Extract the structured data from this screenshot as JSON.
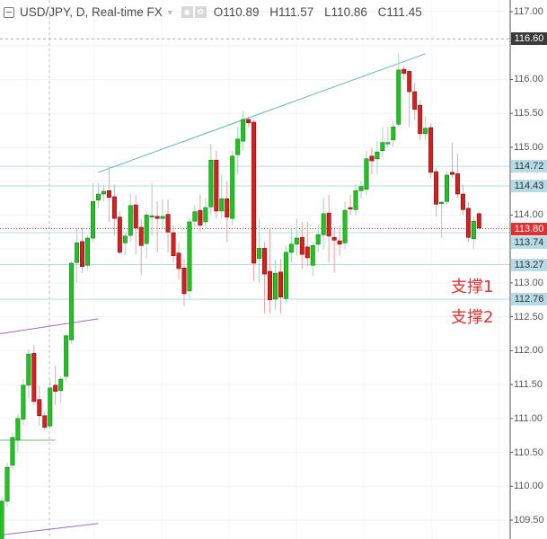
{
  "legend": {
    "title": "USD/JPY, D, Real-time FX",
    "icons": [
      "collapse-icon",
      "caret-down-icon",
      "eye-icon",
      "gear-icon"
    ],
    "open": "O110.89",
    "high": "H111.57",
    "low": "L110.86",
    "close": "C111.45"
  },
  "annotations": {
    "support1": "支撑1",
    "support2": "支撑2"
  },
  "colors": {
    "up": "#1fc51f",
    "down": "#d81e1e",
    "trendline": "#5fb9a8",
    "hline": "#b5dbe6",
    "price_line": "#e23030",
    "purple": "#9b6bc4",
    "label": "#e23030"
  },
  "chart_data": {
    "type": "candlestick",
    "symbol": "USD/JPY",
    "interval": "D",
    "ylim": [
      109.35,
      117.15
    ],
    "y_ticks": [
      "117.00",
      "116.00",
      "115.50",
      "115.00",
      "114.00",
      "113.00",
      "112.50",
      "112.00",
      "111.50",
      "111.00",
      "110.50",
      "110.00",
      "109.50"
    ],
    "price_tags": [
      {
        "label": "116.60",
        "value": 116.6,
        "style": "dashed-gray"
      },
      {
        "label": "114.72",
        "value": 114.72,
        "style": "hline"
      },
      {
        "label": "114.43",
        "value": 114.43,
        "style": "hline"
      },
      {
        "label": "113.80",
        "value": 113.8,
        "style": "last-price"
      },
      {
        "label": "113.74",
        "value": 113.74,
        "style": "hline"
      },
      {
        "label": "113.27",
        "value": 113.27,
        "style": "hline"
      },
      {
        "label": "112.76",
        "value": 112.76,
        "style": "hline"
      }
    ],
    "ohlc": [
      [
        109.2,
        109.85,
        108.9,
        109.78
      ],
      [
        109.78,
        110.35,
        109.7,
        110.28
      ],
      [
        110.31,
        110.79,
        110.25,
        110.72
      ],
      [
        110.68,
        111.06,
        110.5,
        111.0
      ],
      [
        110.99,
        111.58,
        110.9,
        111.49
      ],
      [
        111.49,
        112.02,
        111.3,
        111.95
      ],
      [
        111.96,
        112.08,
        111.2,
        111.25
      ],
      [
        111.28,
        111.48,
        110.9,
        111.04
      ],
      [
        111.04,
        111.1,
        110.83,
        110.87
      ],
      [
        110.89,
        111.57,
        110.86,
        111.45
      ],
      [
        111.49,
        111.78,
        111.2,
        111.4
      ],
      [
        111.41,
        111.62,
        111.23,
        111.58
      ],
      [
        111.62,
        112.25,
        111.55,
        112.22
      ],
      [
        112.16,
        113.32,
        112.1,
        113.29
      ],
      [
        113.3,
        113.8,
        113.0,
        113.59
      ],
      [
        113.61,
        113.82,
        113.15,
        113.24
      ],
      [
        113.26,
        113.7,
        113.2,
        113.66
      ],
      [
        113.66,
        114.47,
        113.6,
        114.2
      ],
      [
        114.22,
        114.47,
        114.1,
        114.31
      ],
      [
        114.31,
        114.45,
        114.2,
        114.35
      ],
      [
        114.36,
        114.72,
        113.9,
        114.26
      ],
      [
        114.27,
        114.45,
        113.7,
        113.95
      ],
      [
        113.97,
        114.05,
        113.42,
        113.45
      ],
      [
        113.59,
        113.75,
        113.4,
        113.69
      ],
      [
        113.7,
        114.31,
        113.6,
        114.14
      ],
      [
        114.15,
        114.3,
        113.42,
        113.81
      ],
      [
        113.82,
        113.95,
        113.12,
        113.55
      ],
      [
        113.58,
        114.05,
        113.35,
        114.0
      ],
      [
        113.98,
        114.47,
        113.7,
        113.99
      ],
      [
        113.98,
        114.2,
        113.45,
        113.95
      ],
      [
        113.95,
        114.23,
        113.8,
        113.98
      ],
      [
        114.01,
        114.23,
        113.45,
        113.75
      ],
      [
        113.74,
        113.85,
        113.3,
        113.4
      ],
      [
        113.44,
        113.6,
        113.05,
        113.21
      ],
      [
        113.22,
        113.35,
        112.66,
        112.84
      ],
      [
        112.88,
        113.95,
        112.75,
        113.9
      ],
      [
        113.91,
        114.15,
        113.8,
        114.05
      ],
      [
        114.07,
        114.3,
        113.75,
        113.85
      ],
      [
        113.9,
        114.25,
        113.8,
        114.11
      ],
      [
        114.12,
        115.05,
        114.0,
        114.81
      ],
      [
        114.81,
        114.95,
        113.95,
        114.06
      ],
      [
        114.06,
        114.6,
        113.95,
        114.24
      ],
      [
        114.24,
        114.5,
        113.6,
        113.97
      ],
      [
        113.95,
        114.95,
        113.85,
        114.87
      ],
      [
        114.89,
        115.3,
        114.6,
        115.12
      ],
      [
        115.09,
        115.53,
        114.95,
        115.41
      ],
      [
        115.41,
        115.45,
        115.3,
        115.36
      ],
      [
        115.37,
        115.4,
        113.03,
        113.29
      ],
      [
        113.36,
        113.95,
        113.0,
        113.51
      ],
      [
        113.51,
        113.6,
        112.55,
        113.13
      ],
      [
        113.17,
        113.8,
        112.55,
        112.75
      ],
      [
        112.76,
        113.34,
        112.6,
        113.14
      ],
      [
        113.16,
        113.35,
        112.55,
        112.79
      ],
      [
        112.77,
        113.55,
        112.7,
        113.45
      ],
      [
        113.45,
        113.8,
        113.3,
        113.57
      ],
      [
        113.57,
        113.95,
        113.4,
        113.66
      ],
      [
        113.67,
        113.9,
        113.2,
        113.42
      ],
      [
        113.53,
        113.9,
        113.25,
        113.37
      ],
      [
        113.26,
        113.6,
        113.1,
        113.55
      ],
      [
        113.57,
        113.85,
        113.45,
        113.71
      ],
      [
        113.71,
        114.25,
        113.5,
        114.02
      ],
      [
        114.03,
        114.3,
        113.3,
        113.69
      ],
      [
        113.67,
        113.8,
        113.15,
        113.63
      ],
      [
        113.62,
        113.85,
        113.4,
        113.57
      ],
      [
        113.59,
        114.2,
        113.5,
        114.07
      ],
      [
        114.11,
        114.3,
        114.0,
        114.09
      ],
      [
        114.08,
        114.45,
        114.0,
        114.36
      ],
      [
        114.36,
        114.5,
        114.25,
        114.42
      ],
      [
        114.38,
        114.95,
        114.3,
        114.83
      ],
      [
        114.87,
        115.0,
        114.6,
        114.8
      ],
      [
        114.83,
        115.1,
        114.6,
        114.93
      ],
      [
        114.95,
        115.3,
        114.85,
        115.07
      ],
      [
        115.07,
        115.3,
        115.0,
        115.07
      ],
      [
        115.11,
        115.4,
        115.0,
        115.3
      ],
      [
        115.34,
        116.38,
        115.3,
        116.14
      ],
      [
        116.15,
        116.2,
        116.0,
        116.09
      ],
      [
        116.12,
        116.15,
        115.3,
        115.82
      ],
      [
        115.82,
        115.95,
        115.4,
        115.56
      ],
      [
        115.62,
        115.7,
        115.1,
        115.2
      ],
      [
        115.2,
        115.45,
        115.1,
        115.28
      ],
      [
        115.29,
        115.35,
        114.55,
        114.63
      ],
      [
        114.64,
        114.7,
        113.98,
        114.16
      ],
      [
        114.19,
        114.2,
        113.66,
        114.19
      ],
      [
        114.2,
        114.65,
        114.15,
        114.59
      ],
      [
        114.63,
        115.07,
        114.55,
        114.6
      ],
      [
        114.61,
        114.9,
        114.25,
        114.31
      ],
      [
        114.31,
        114.45,
        114.0,
        114.08
      ],
      [
        114.1,
        114.2,
        113.6,
        113.67
      ],
      [
        113.65,
        113.98,
        113.5,
        113.91
      ],
      [
        114.02,
        114.05,
        113.78,
        113.81
      ]
    ],
    "trendlines": [
      {
        "from": [
          18,
          114.63
        ],
        "to": [
          79,
          116.38
        ],
        "color": "teal"
      },
      {
        "from": [
          0,
          112.25
        ],
        "to": [
          18,
          112.47
        ],
        "color": "purple"
      },
      {
        "from": [
          0,
          109.28
        ],
        "to": [
          18,
          109.45
        ],
        "color": "purple"
      },
      {
        "from": [
          0,
          110.68
        ],
        "to": [
          10,
          110.68
        ],
        "color": "green"
      }
    ],
    "grid": true
  }
}
